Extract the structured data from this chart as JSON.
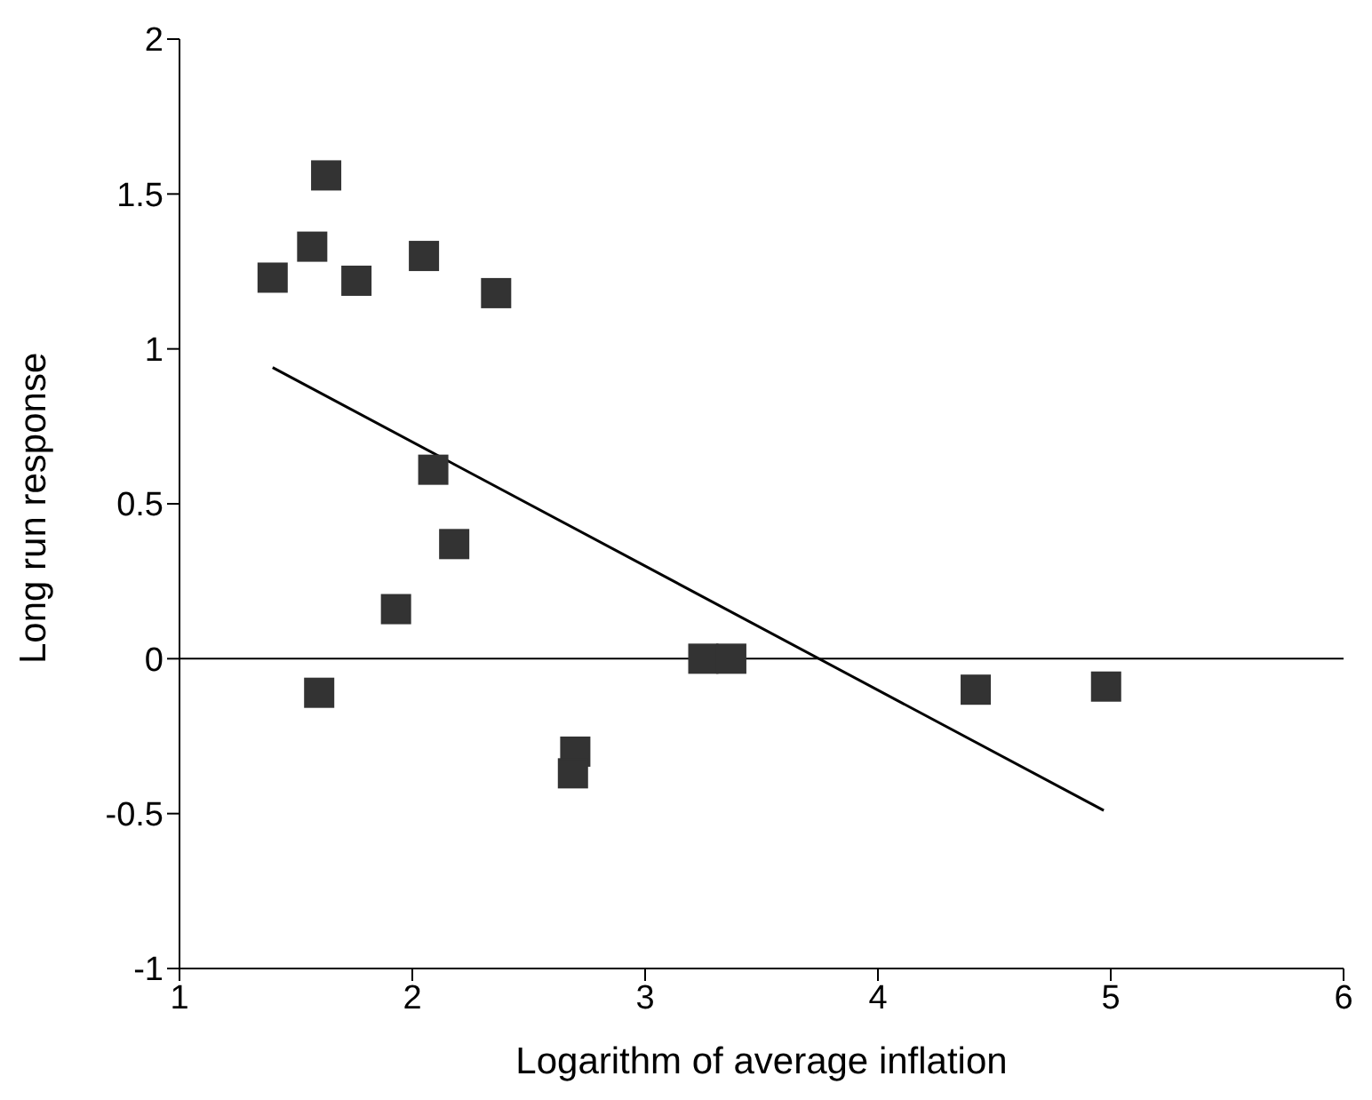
{
  "chart_data": {
    "type": "scatter",
    "xlabel": "Logarithm of average inflation",
    "ylabel": "Long run response",
    "xlim": [
      1,
      6
    ],
    "xticks": [
      1,
      2,
      3,
      4,
      5,
      6
    ],
    "ylim": [
      -1,
      2
    ],
    "yticks": [
      -1,
      -0.5,
      0,
      0.5,
      1,
      1.5,
      2
    ],
    "grid": false,
    "legend": false,
    "series": [
      {
        "marker": "square",
        "color": "#333333",
        "x": [
          1.4,
          1.57,
          1.63,
          1.76,
          2.05,
          2.36,
          2.09,
          2.18,
          1.93,
          1.6,
          2.7,
          2.69,
          3.25,
          3.37,
          4.42,
          4.98
        ],
        "values": [
          1.23,
          1.33,
          1.56,
          1.22,
          1.3,
          1.18,
          0.61,
          0.37,
          0.16,
          -0.11,
          -0.3,
          -0.37,
          0,
          0,
          -0.1,
          -0.09
        ]
      },
      {
        "type": "line",
        "color": "#000000",
        "x": [
          1.4,
          4.97
        ],
        "values": [
          0.94,
          -0.49
        ]
      }
    ],
    "ref_lines": [
      {
        "axis": "y",
        "value": 0,
        "color": "#000000"
      }
    ]
  }
}
